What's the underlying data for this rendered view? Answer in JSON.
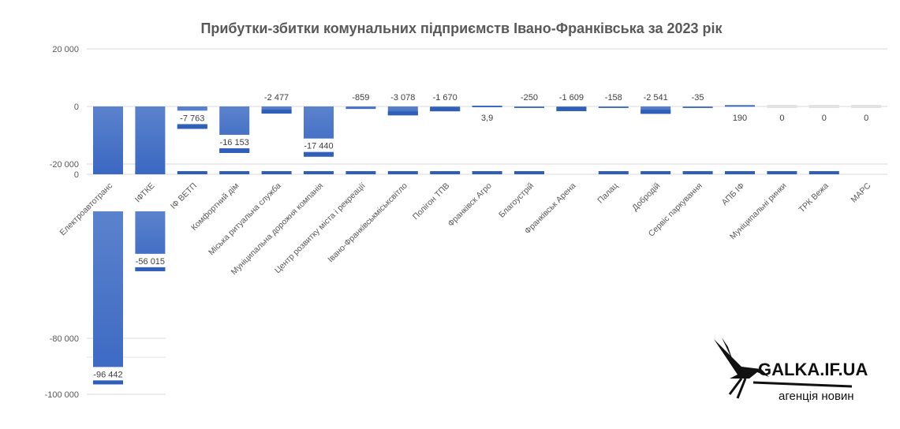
{
  "chart_data": {
    "type": "bar",
    "title": "Прибутки-збитки  комунальних  підприємств  Івано-Франківська  за 2023 рік",
    "xlabel": "",
    "ylabel": "",
    "ylim": [
      -100000,
      20000
    ],
    "axis_break": [
      -34000,
      -20000
    ],
    "y_ticks": [
      {
        "v": 20000,
        "label": "20 000"
      },
      {
        "v": 0,
        "label": "0"
      },
      {
        "v": -20000,
        "label": "-20 000"
      },
      {
        "v": -80000,
        "label": "-80 000"
      },
      {
        "v": -100000,
        "label": "-100 000"
      }
    ],
    "break_label": "0",
    "categories": [
      "Електроавтотранс",
      "ІФТКЕ",
      "ІФ ВЕТП",
      "Комфортний дім",
      "Міська ритуальна служба",
      "Муніципальна дорожня компанія",
      "Центр розвитку міста і рекреації",
      "Івано-Франківськміськсвітло",
      "Полігон ТПВ",
      "Франківск Агро",
      "Благоустрій",
      "Франківськ Арена",
      "Палац",
      "Добродій",
      "Сервіс паркування",
      "АПБ ІФ",
      "Муніципальні ринки",
      "ТРК Вежа",
      "МАРС"
    ],
    "values": [
      -96442,
      -56015,
      -7763,
      -16153,
      -2477,
      -17440,
      -859,
      -3078,
      -1670,
      3.9,
      -250,
      -1609,
      -158,
      -2541,
      -35,
      190,
      0,
      0,
      0
    ],
    "data_labels": [
      "-96 442",
      "-56 015",
      "-7 763",
      "-16 153",
      "-2 477",
      "-17 440",
      "-859",
      "-3 078",
      "-1 670",
      "3,9",
      "-250",
      "-1 609",
      "-158",
      "-2 541",
      "-35",
      "190",
      "0",
      "0",
      "0"
    ],
    "grid": true,
    "legend": "none"
  },
  "logo": {
    "name": "GALKA.IF.UA",
    "tagline": "агенція новин"
  },
  "colors": {
    "bar": "#4472C4",
    "bar_dark": "#2F5FB8",
    "grid": "#D9D9D9",
    "text": "#404040"
  }
}
